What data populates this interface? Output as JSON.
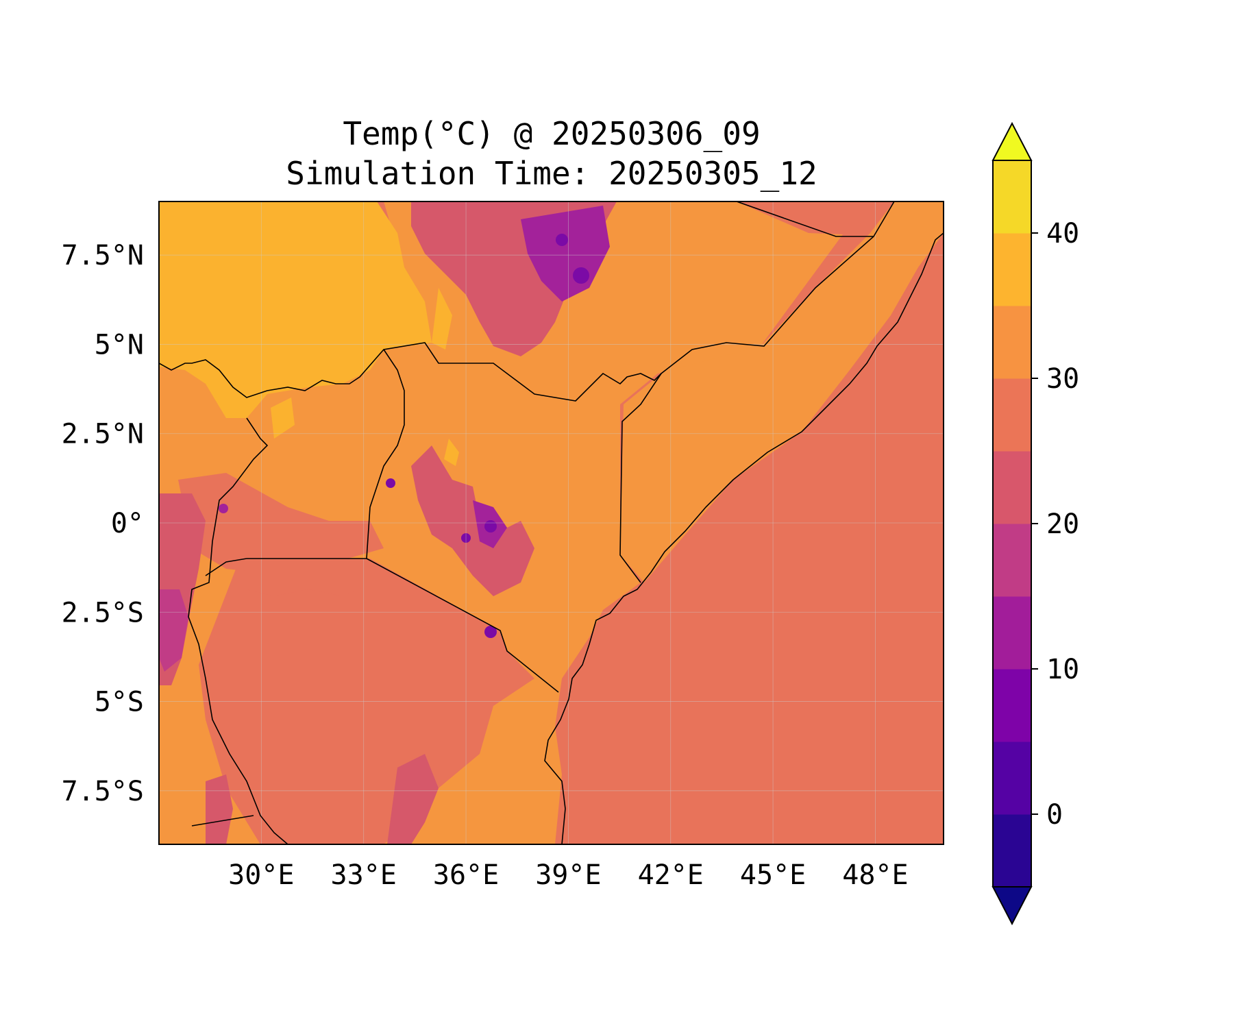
{
  "title": "Temp(°C) @ 20250306_09",
  "subtitle": "Simulation Time: 20250305_12",
  "map": {
    "type": "filled-contour-map",
    "variable": "Temp(°C)",
    "lon_range": [
      27.0,
      50.0
    ],
    "lat_range": [
      -9.0,
      9.0
    ],
    "lon_ticks": [
      "30°E",
      "33°E",
      "36°E",
      "39°E",
      "42°E",
      "45°E",
      "48°E"
    ],
    "lat_ticks": [
      "7.5°N",
      "5°N",
      "2.5°N",
      "0°",
      "2.5°S",
      "5°S",
      "7.5°S"
    ],
    "lon_tick_values": [
      30,
      33,
      36,
      39,
      42,
      45,
      48
    ],
    "lat_tick_values": [
      7.5,
      5,
      2.5,
      0,
      -2.5,
      -5,
      -7.5
    ],
    "grid": true,
    "features": [
      "coastline",
      "country borders"
    ]
  },
  "colorbar": {
    "label_ticks": [
      "40",
      "30",
      "20",
      "10",
      "0"
    ],
    "tick_values": [
      40,
      30,
      20,
      10,
      0
    ],
    "levels": [
      -5,
      0,
      5,
      10,
      15,
      20,
      25,
      30,
      35,
      40,
      45
    ],
    "extend": "both",
    "colors": [
      "#0d0887",
      "#2a0593",
      "#5502a4",
      "#7e03a8",
      "#a21d9a",
      "#c13c86",
      "#d8576b",
      "#eb7557",
      "#f79341",
      "#fdb42f",
      "#f5d828",
      "#f0f921"
    ]
  },
  "palette": {
    "ocean": "#e8735a",
    "warm_land": "#f5963f",
    "hot_land": "#fbb22f",
    "highland": "#d6586a",
    "cold_peaks": "#a3229a",
    "coldest": "#7b0aa6"
  }
}
